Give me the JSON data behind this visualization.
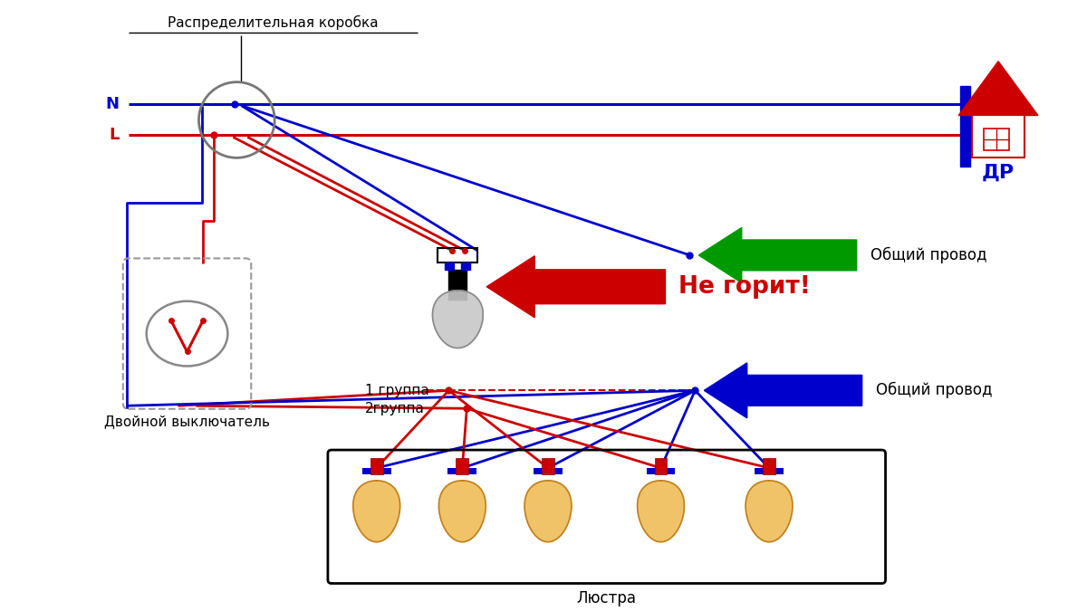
{
  "bg_color": "#ffffff",
  "blue": "#0000cc",
  "red": "#cc0000",
  "green": "#009900",
  "gray": "#888888",
  "black": "#000000",
  "label_distrib": "Распределительная коробка",
  "label_switch": "Двойной выключатель",
  "label_chandelier": "Люстра",
  "label_group1": "1 группа",
  "label_group2": "2группа",
  "label_common": "Общий провод",
  "label_no_light": "Не горит!",
  "label_N": "N",
  "label_L": "L",
  "lw": 2.0
}
